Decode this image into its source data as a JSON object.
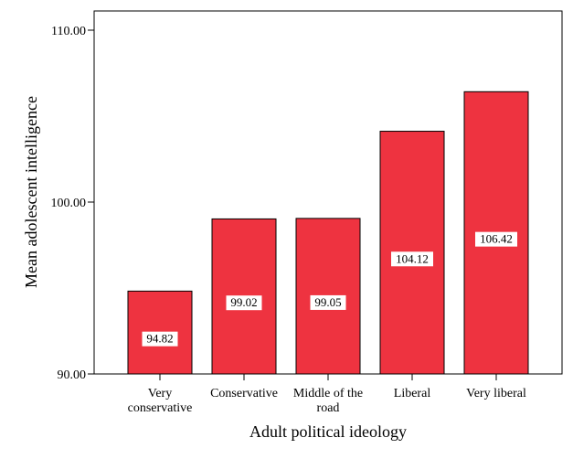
{
  "chart_data": {
    "type": "bar",
    "title": "",
    "xlabel": "Adult political ideology",
    "ylabel": "Mean adolescent intelligence",
    "categories": [
      [
        "Very",
        "conservative"
      ],
      [
        "Conservative"
      ],
      [
        "Middle of the",
        "road"
      ],
      [
        "Liberal"
      ],
      [
        "Very liberal"
      ]
    ],
    "values": [
      94.82,
      99.02,
      99.05,
      104.12,
      106.42
    ],
    "data_labels": [
      "94.82",
      "99.02",
      "99.05",
      "104.12",
      "106.42"
    ],
    "yticks": [
      90,
      100,
      110
    ],
    "ytick_labels": [
      "90.00",
      "100.00",
      "110.00"
    ],
    "ylim": [
      90,
      111.1
    ],
    "grid": false,
    "bar_color": "#ee3340"
  }
}
